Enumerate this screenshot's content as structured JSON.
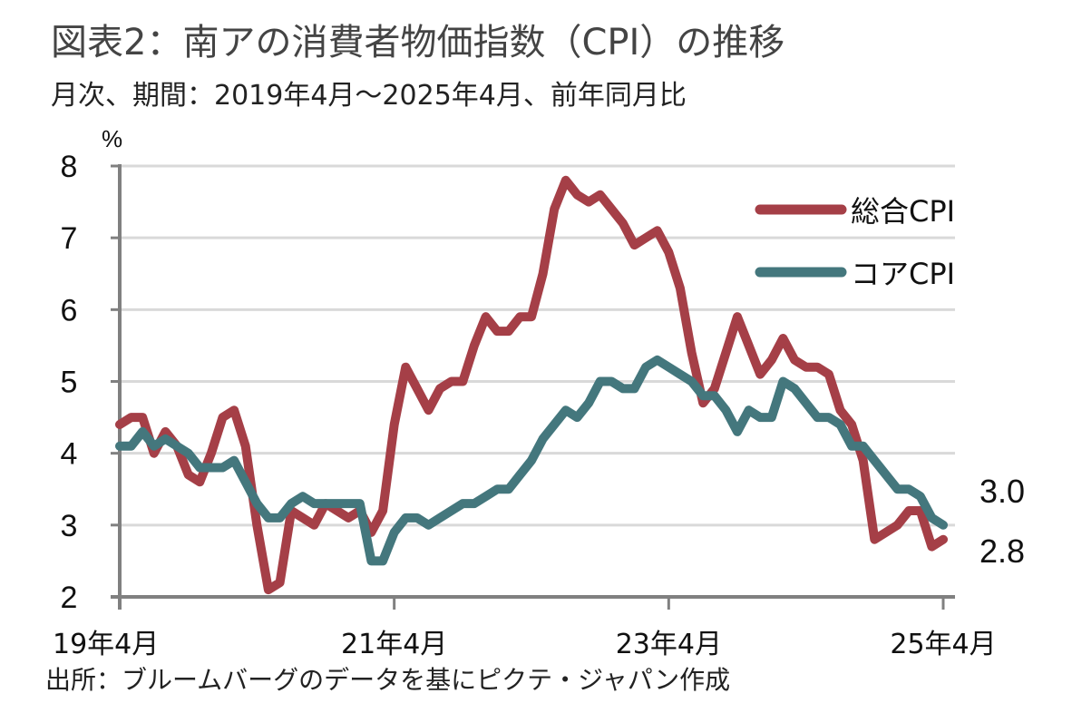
{
  "chart_data": {
    "type": "line",
    "title": "図表2：南アの消費者物価指数（CPI）の推移",
    "subtitle": "月次、期間：2019年4月～2025年4月、前年同月比",
    "ylabel": "%",
    "xlabel": "",
    "ylim": [
      2,
      8
    ],
    "yticks": [
      2,
      3,
      4,
      5,
      6,
      7,
      8
    ],
    "x_start": "2019-04",
    "x_end": "2025-04",
    "x_tick_labels": [
      {
        "label": "19年4月",
        "month_index": 0
      },
      {
        "label": "21年4月",
        "month_index": 24
      },
      {
        "label": "23年4月",
        "month_index": 48
      },
      {
        "label": "25年4月",
        "month_index": 72
      }
    ],
    "grid": true,
    "legend_position": "top-right",
    "series": [
      {
        "name": "総合CPI",
        "color": "#a53f47",
        "end_label": "2.8",
        "values": [
          4.4,
          4.5,
          4.5,
          4.0,
          4.3,
          4.1,
          3.7,
          3.6,
          4.0,
          4.5,
          4.6,
          4.1,
          3.0,
          2.1,
          2.2,
          3.2,
          3.1,
          3.0,
          3.3,
          3.2,
          3.1,
          3.2,
          2.9,
          3.2,
          4.4,
          5.2,
          4.9,
          4.6,
          4.9,
          5.0,
          5.0,
          5.5,
          5.9,
          5.7,
          5.7,
          5.9,
          5.9,
          6.5,
          7.4,
          7.8,
          7.6,
          7.5,
          7.6,
          7.4,
          7.2,
          6.9,
          7.0,
          7.1,
          6.8,
          6.3,
          5.4,
          4.7,
          4.9,
          5.4,
          5.9,
          5.5,
          5.1,
          5.3,
          5.6,
          5.3,
          5.2,
          5.2,
          5.1,
          4.6,
          4.4,
          3.9,
          2.8,
          2.9,
          3.0,
          3.2,
          3.2,
          2.7,
          2.8
        ]
      },
      {
        "name": "コアCPI",
        "color": "#44777d",
        "end_label": "3.0",
        "values": [
          4.1,
          4.1,
          4.3,
          4.1,
          4.2,
          4.1,
          4.0,
          3.8,
          3.8,
          3.8,
          3.9,
          3.6,
          3.3,
          3.1,
          3.1,
          3.3,
          3.4,
          3.3,
          3.3,
          3.3,
          3.3,
          3.3,
          2.5,
          2.5,
          2.9,
          3.1,
          3.1,
          3.0,
          3.1,
          3.2,
          3.3,
          3.3,
          3.4,
          3.5,
          3.5,
          3.7,
          3.9,
          4.2,
          4.4,
          4.6,
          4.5,
          4.7,
          5.0,
          5.0,
          4.9,
          4.9,
          5.2,
          5.3,
          5.2,
          5.1,
          5.0,
          4.8,
          4.8,
          4.6,
          4.3,
          4.6,
          4.5,
          4.5,
          5.0,
          4.9,
          4.7,
          4.5,
          4.5,
          4.4,
          4.1,
          4.1,
          3.9,
          3.7,
          3.5,
          3.5,
          3.4,
          3.1,
          3.0
        ]
      }
    ],
    "source": "出所：ブルームバーグのデータを基にピクテ・ジャパン作成",
    "colors": {
      "grid": "#d9d9d9",
      "axis": "#808080"
    }
  }
}
